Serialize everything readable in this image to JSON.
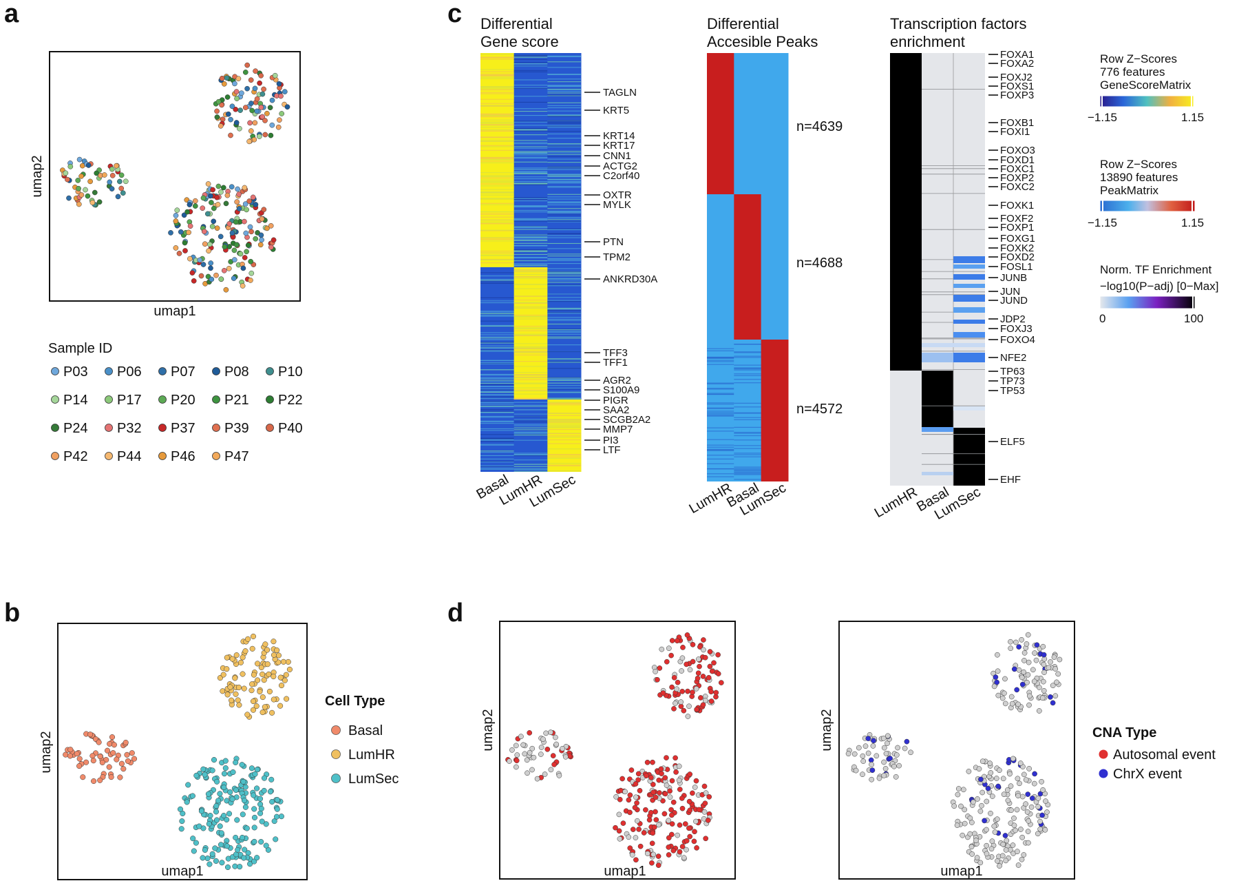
{
  "panels": {
    "a": "a",
    "b": "b",
    "c": "c",
    "d": "d"
  },
  "umap_axes": {
    "x": "umap1",
    "y": "umap2"
  },
  "sample_legend": {
    "title": "Sample ID",
    "items": [
      {
        "id": "P03",
        "color": "#6fa8dc"
      },
      {
        "id": "P06",
        "color": "#4a90c8"
      },
      {
        "id": "P07",
        "color": "#2f6fa8"
      },
      {
        "id": "P08",
        "color": "#1f5c99"
      },
      {
        "id": "P10",
        "color": "#3f8f8f"
      },
      {
        "id": "P14",
        "color": "#a5d69a"
      },
      {
        "id": "P17",
        "color": "#8cc97a"
      },
      {
        "id": "P20",
        "color": "#5daa55"
      },
      {
        "id": "P21",
        "color": "#3e9440"
      },
      {
        "id": "P22",
        "color": "#2d7d32"
      },
      {
        "id": "P24",
        "color": "#357a38"
      },
      {
        "id": "P32",
        "color": "#e57373"
      },
      {
        "id": "P37",
        "color": "#c62828"
      },
      {
        "id": "P39",
        "color": "#e07050"
      },
      {
        "id": "P40",
        "color": "#d8684a"
      },
      {
        "id": "P42",
        "color": "#f0a060"
      },
      {
        "id": "P44",
        "color": "#f5b870"
      },
      {
        "id": "P46",
        "color": "#e69a3c"
      },
      {
        "id": "P47",
        "color": "#f2a95a"
      }
    ]
  },
  "cell_type_legend": {
    "title": "Cell Type",
    "items": [
      {
        "label": "Basal",
        "color": "#f08a6a"
      },
      {
        "label": "LumHR",
        "color": "#f0c060"
      },
      {
        "label": "LumSec",
        "color": "#4fc0c8"
      }
    ]
  },
  "cna_legend": {
    "title": "CNA Type",
    "items": [
      {
        "label": "Autosomal event",
        "color": "#e03030"
      },
      {
        "label": "ChrX event",
        "color": "#3030d0"
      }
    ]
  },
  "heatmaps": {
    "gene_score": {
      "title_line1": "Differential",
      "title_line2": "Gene score",
      "columns": [
        "Basal",
        "LumHR",
        "LumSec"
      ],
      "genes": [
        "TAGLN",
        "KRT5",
        "KRT14",
        "KRT17",
        "CNN1",
        "ACTG2",
        "C2orf40",
        "OXTR",
        "MYLK",
        "PTN",
        "TPM2",
        "ANKRD30A",
        "TFF3",
        "TFF1",
        "AGR2",
        "S100A9",
        "PIGR",
        "SAA2",
        "SCGB2A2",
        "MMP7",
        "PI3",
        "LTF"
      ]
    },
    "peaks": {
      "title_line1": "Differential",
      "title_line2": "Accesible Peaks",
      "columns": [
        "LumHR",
        "Basal",
        "LumSec"
      ],
      "counts": [
        "n=4639",
        "n=4688",
        "n=4572"
      ]
    },
    "tf": {
      "title_line1": "Transcription factors",
      "title_line2": "enrichment",
      "columns": [
        "LumHR",
        "Basal",
        "LumSec"
      ],
      "tfs": [
        "FOXA1",
        "FOXA2",
        "FOXJ2",
        "FOXS1",
        "FOXP3",
        "FOXB1",
        "FOXI1",
        "FOXO3",
        "FOXD1",
        "FOXC1",
        "FOXP2",
        "FOXC2",
        "FOXK1",
        "FOXF2",
        "FOXP1",
        "FOXG1",
        "FOXK2",
        "FOXD2",
        "FOSL1",
        "JUNB",
        "JUN",
        "JUND",
        "JDP2",
        "FOXJ3",
        "FOXO4",
        "NFE2",
        "TP63",
        "TP73",
        "TP53",
        "ELF5",
        "EHF"
      ]
    }
  },
  "colorbars": [
    {
      "line1": "Row Z−Scores",
      "line2": "776 features",
      "line3": "GeneScoreMatrix",
      "min": "−1.15",
      "max": "1.15"
    },
    {
      "line1": "Row Z−Scores",
      "line2": "13890 features",
      "line3": "PeakMatrix",
      "min": "−1.15",
      "max": "1.15"
    },
    {
      "line1": "Norm. TF Enrichment",
      "line2": "−log10(P−adj) [0−Max]",
      "min": "0",
      "max": "100"
    }
  ]
}
